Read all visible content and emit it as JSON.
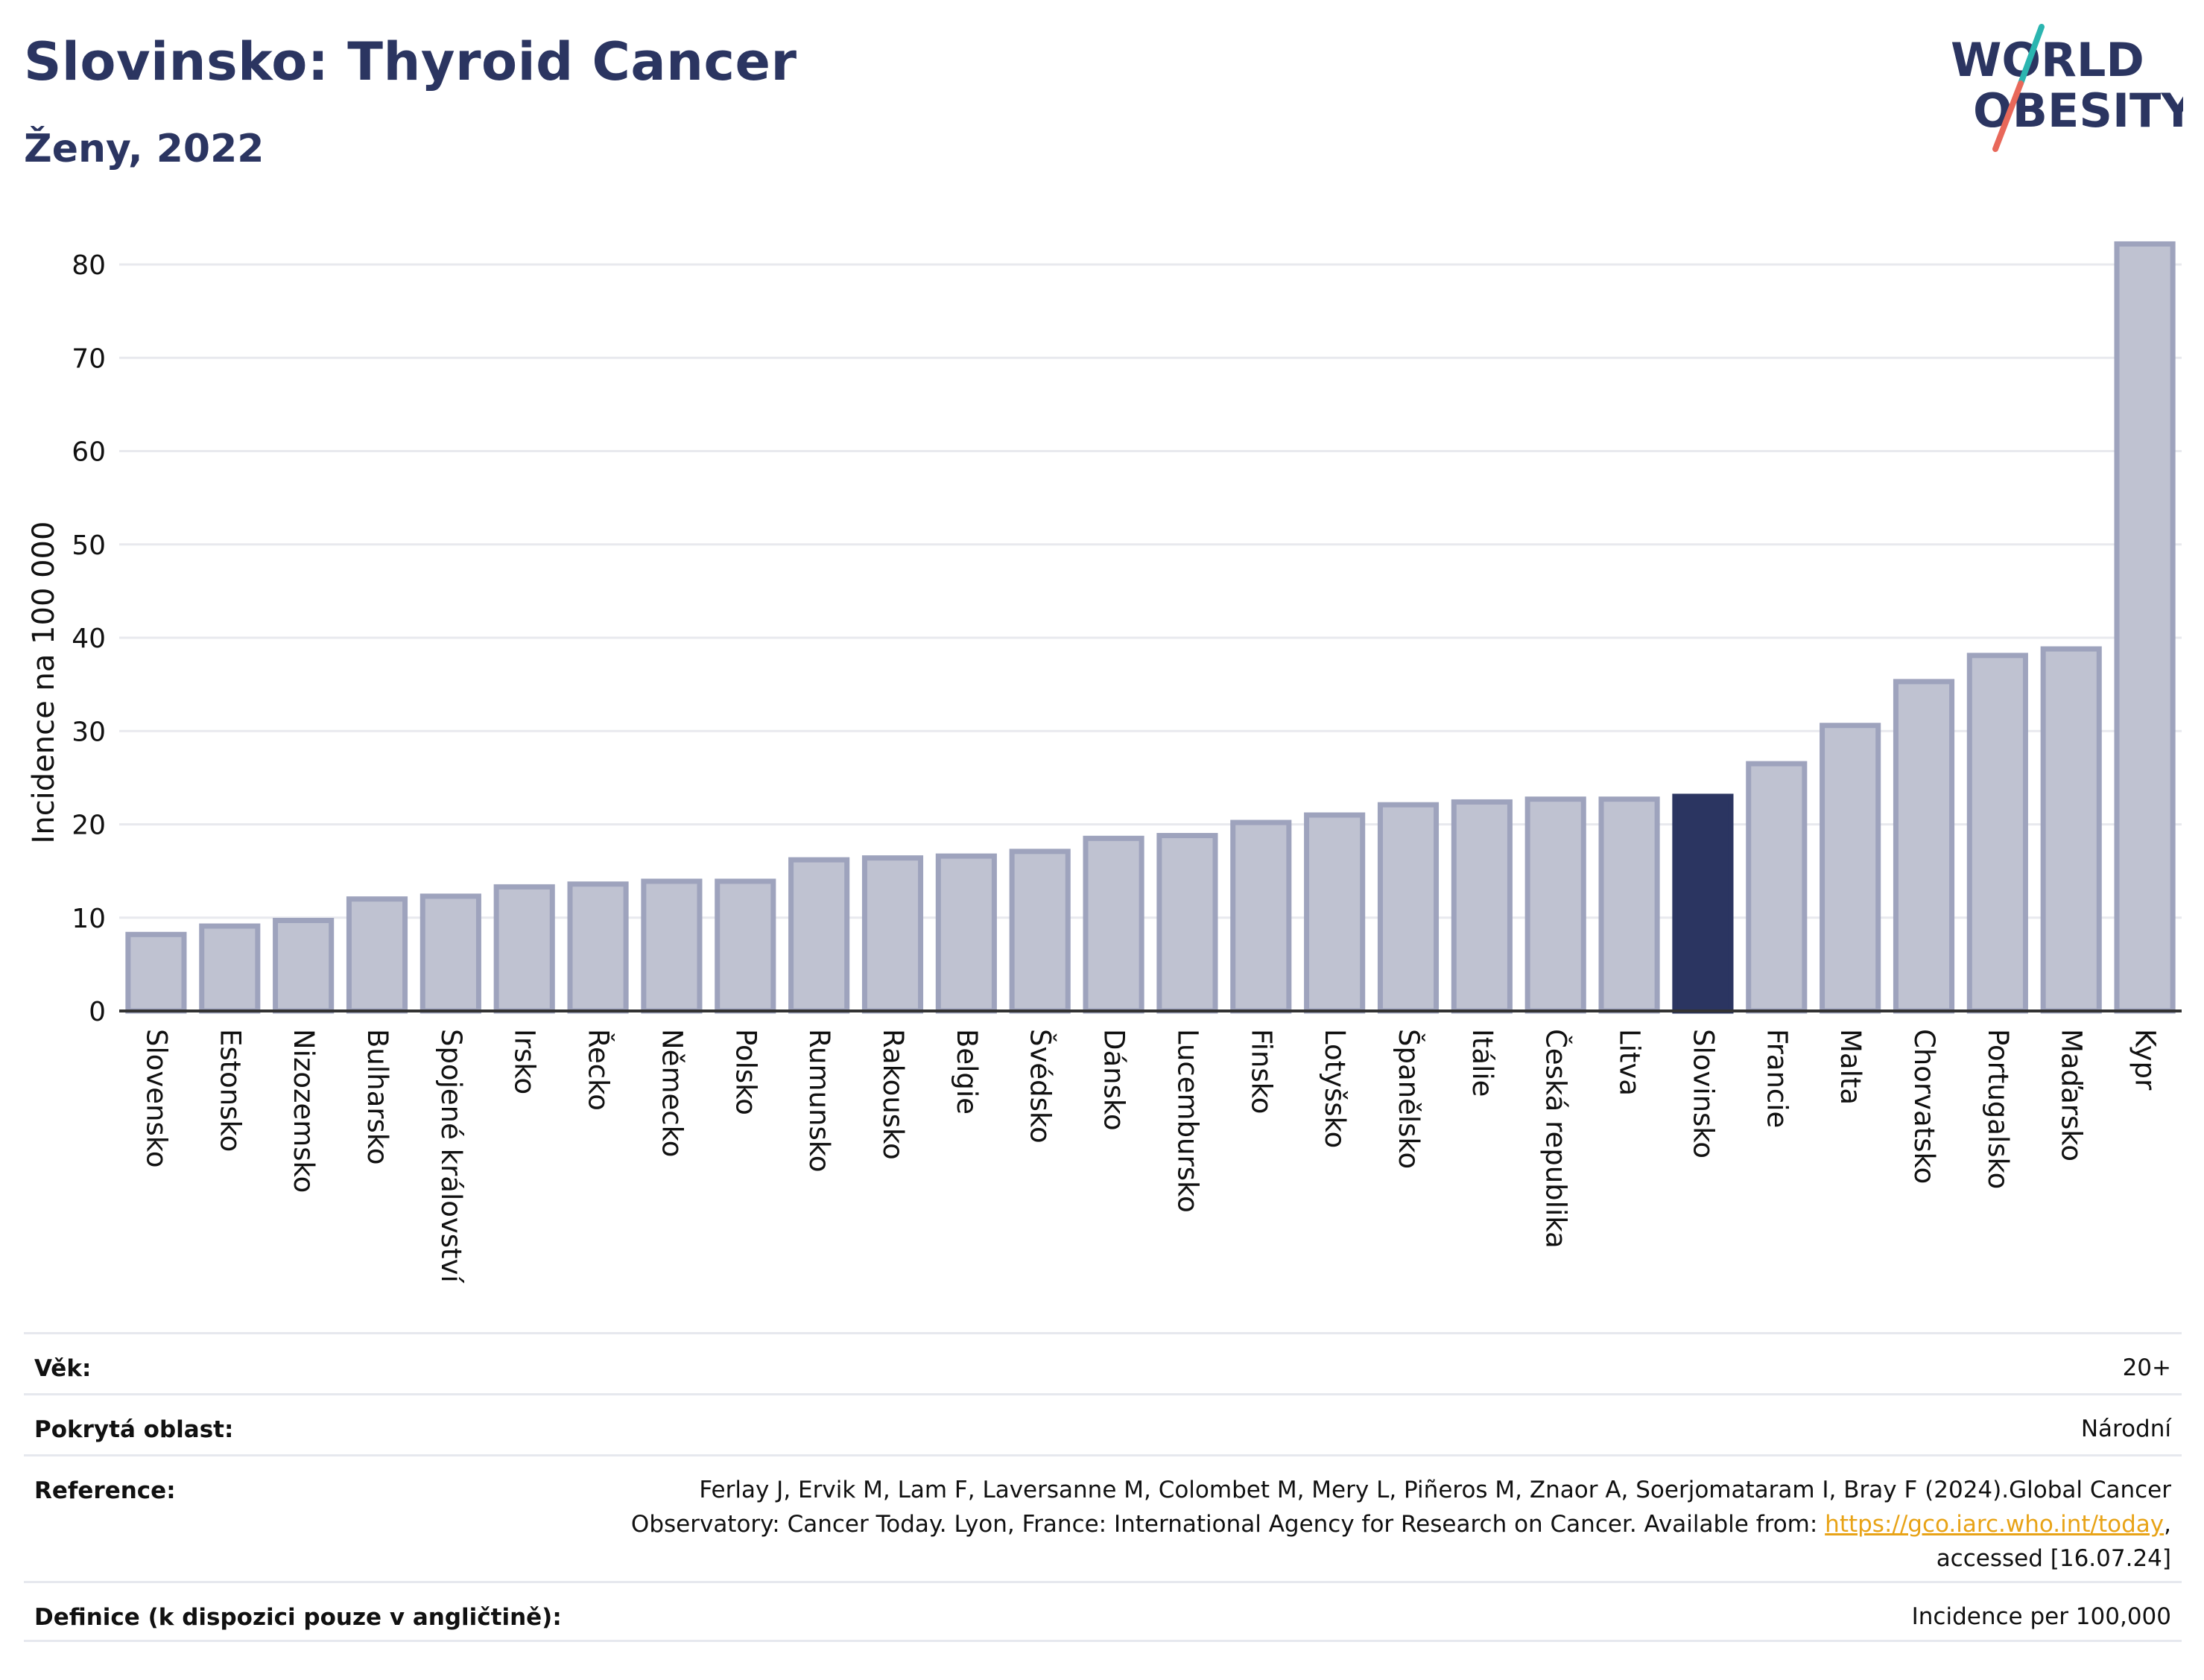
{
  "header": {
    "title": "Slovinsko: Thyroid Cancer",
    "subtitle": "Ženy, 2022"
  },
  "logo": {
    "line1": "WORLD",
    "line2": "OBESITY",
    "colors": {
      "text": "#2b3561",
      "slash_red": "#e8685a",
      "slash_teal": "#2bb5b0"
    }
  },
  "chart_data": {
    "type": "bar",
    "ylabel": "Incidence na 100 000",
    "ylim": [
      0,
      85
    ],
    "yticks": [
      0,
      10,
      20,
      30,
      40,
      50,
      60,
      70,
      80
    ],
    "grid": true,
    "highlight": "Slovinsko",
    "colors": {
      "bar": "#bfc2d1",
      "bar_edge": "#9ea3bd",
      "highlight": "#2b3561",
      "grid": "#e8e9ee",
      "axis": "#333333"
    },
    "categories": [
      "Slovensko",
      "Estonsko",
      "Nizozemsko",
      "Bulharsko",
      "Spojené království",
      "Irsko",
      "Řecko",
      "Německo",
      "Polsko",
      "Rumunsko",
      "Rakousko",
      "Belgie",
      "Švédsko",
      "Dánsko",
      "Lucembursko",
      "Finsko",
      "Lotyšsko",
      "Španělsko",
      "Itálie",
      "Česká republika",
      "Litva",
      "Slovinsko",
      "Francie",
      "Malta",
      "Chorvatsko",
      "Portugalsko",
      "Maďarsko",
      "Kypr"
    ],
    "values": [
      8.2,
      9.1,
      9.7,
      12.0,
      12.3,
      13.3,
      13.6,
      13.9,
      13.9,
      16.2,
      16.4,
      16.6,
      17.1,
      18.5,
      18.8,
      20.2,
      21.0,
      22.1,
      22.4,
      22.7,
      22.7,
      23.0,
      26.5,
      30.6,
      35.3,
      38.1,
      38.8,
      82.2
    ]
  },
  "meta": {
    "age_label": "Věk:",
    "age_value": "20+",
    "area_label": "Pokrytá oblast:",
    "area_value": "Národní",
    "ref_label": "Reference:",
    "ref_text_1": "Ferlay J, Ervik M, Lam F, Laversanne M, Colombet M, Mery L, Piñeros M, Znaor A, Soerjomataram I, Bray F (2024).Global Cancer Observatory: Cancer Today. Lyon, France: International Agency for Research on Cancer. Available from: ",
    "ref_link": "https://gco.iarc.who.int/today",
    "ref_text_2": ", accessed [16.07.24]",
    "def_label": "Definice (k dispozici pouze v angličtině):",
    "def_value": "Incidence per 100,000"
  }
}
